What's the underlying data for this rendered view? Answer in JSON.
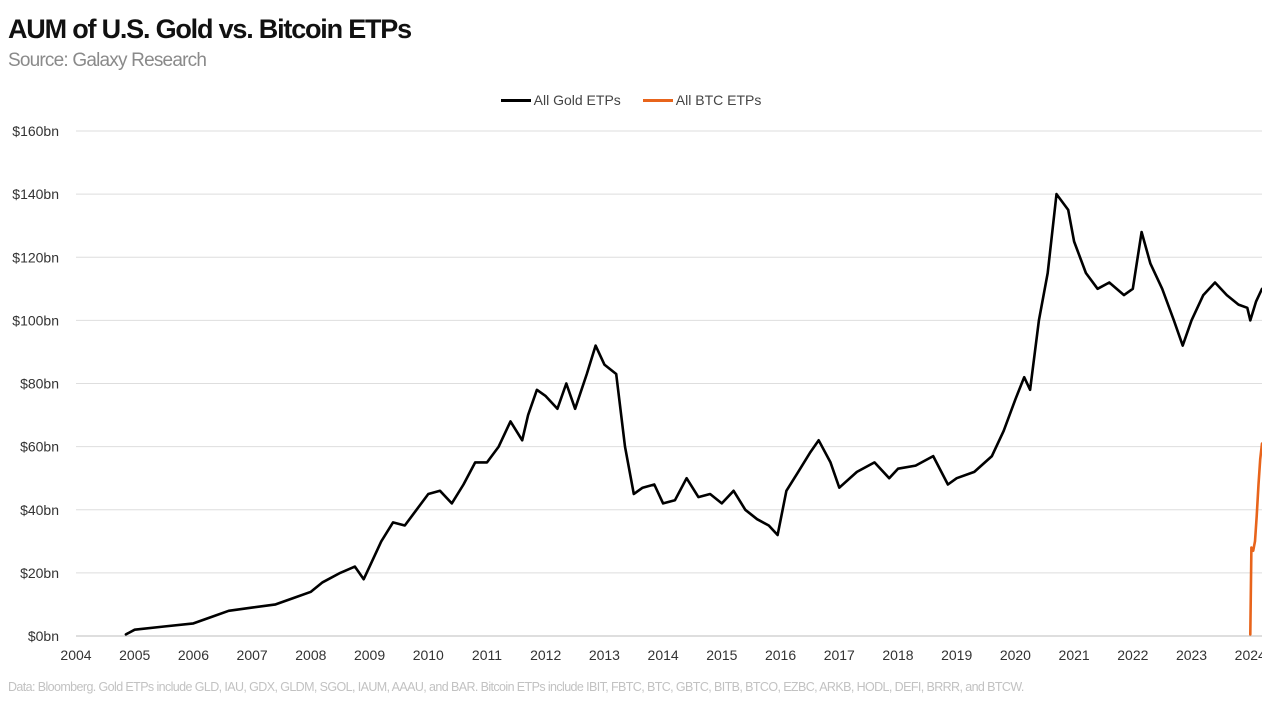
{
  "chart_data": {
    "type": "line",
    "title": "AUM of U.S. Gold vs. Bitcoin ETPs",
    "subtitle": "Source: Galaxy Research",
    "xlabel": "",
    "ylabel": "",
    "xlim": [
      2004,
      2024.2
    ],
    "ylim": [
      0,
      160
    ],
    "grid": true,
    "legend_position": "top-center",
    "x_ticks": [
      "2004",
      "2005",
      "2006",
      "2007",
      "2008",
      "2009",
      "2010",
      "2011",
      "2012",
      "2013",
      "2014",
      "2015",
      "2016",
      "2017",
      "2018",
      "2019",
      "2020",
      "2021",
      "2022",
      "2023",
      "2024"
    ],
    "y_ticks": [
      {
        "value": 0,
        "label": "$0bn"
      },
      {
        "value": 20,
        "label": "$20bn"
      },
      {
        "value": 40,
        "label": "$40bn"
      },
      {
        "value": 60,
        "label": "$60bn"
      },
      {
        "value": 80,
        "label": "$80bn"
      },
      {
        "value": 100,
        "label": "$100bn"
      },
      {
        "value": 120,
        "label": "$120bn"
      },
      {
        "value": 140,
        "label": "$140bn"
      },
      {
        "value": 160,
        "label": "$160bn"
      }
    ],
    "series": [
      {
        "name": "All Gold ETPs",
        "color": "#000000",
        "x": [
          2004.85,
          2005.0,
          2005.5,
          2006.0,
          2006.3,
          2006.6,
          2007.0,
          2007.4,
          2007.7,
          2008.0,
          2008.2,
          2008.5,
          2008.75,
          2008.9,
          2009.0,
          2009.2,
          2009.4,
          2009.6,
          2009.8,
          2010.0,
          2010.2,
          2010.4,
          2010.6,
          2010.8,
          2011.0,
          2011.2,
          2011.4,
          2011.6,
          2011.7,
          2011.85,
          2012.0,
          2012.2,
          2012.35,
          2012.5,
          2012.7,
          2012.85,
          2013.0,
          2013.2,
          2013.35,
          2013.5,
          2013.65,
          2013.85,
          2014.0,
          2014.2,
          2014.4,
          2014.6,
          2014.8,
          2015.0,
          2015.2,
          2015.4,
          2015.6,
          2015.8,
          2015.95,
          2016.1,
          2016.3,
          2016.5,
          2016.65,
          2016.85,
          2017.0,
          2017.3,
          2017.6,
          2017.85,
          2018.0,
          2018.3,
          2018.6,
          2018.85,
          2019.0,
          2019.3,
          2019.6,
          2019.8,
          2020.0,
          2020.15,
          2020.25,
          2020.4,
          2020.55,
          2020.7,
          2020.9,
          2021.0,
          2021.2,
          2021.4,
          2021.6,
          2021.85,
          2022.0,
          2022.15,
          2022.3,
          2022.5,
          2022.7,
          2022.85,
          2023.0,
          2023.2,
          2023.4,
          2023.6,
          2023.8,
          2023.95,
          2024.0,
          2024.1,
          2024.2
        ],
        "values": [
          0.5,
          2,
          3,
          4,
          6,
          8,
          9,
          10,
          12,
          14,
          17,
          20,
          22,
          18,
          22,
          30,
          36,
          35,
          40,
          45,
          46,
          42,
          48,
          55,
          55,
          60,
          68,
          62,
          70,
          78,
          76,
          72,
          80,
          72,
          83,
          92,
          86,
          83,
          60,
          45,
          47,
          48,
          42,
          43,
          50,
          44,
          45,
          42,
          46,
          40,
          37,
          35,
          32,
          46,
          52,
          58,
          62,
          55,
          47,
          52,
          55,
          50,
          53,
          54,
          57,
          48,
          50,
          52,
          57,
          65,
          75,
          82,
          78,
          100,
          115,
          140,
          135,
          125,
          115,
          110,
          112,
          108,
          110,
          128,
          118,
          110,
          100,
          92,
          100,
          108,
          112,
          108,
          105,
          104,
          100,
          106,
          110
        ]
      },
      {
        "name": "All BTC ETPs",
        "color": "#e8641b",
        "x": [
          2024.0,
          2024.02,
          2024.05,
          2024.08,
          2024.11,
          2024.14,
          2024.17,
          2024.2
        ],
        "values": [
          0.5,
          28,
          27,
          30,
          38,
          48,
          56,
          61
        ]
      }
    ],
    "footnote": "Data: Bloomberg. Gold ETPs include GLD, IAU, GDX, GLDM, SGOL, IAUM, AAAU, and BAR. Bitcoin ETPs include IBIT, FBTC, BTC, GBTC, BITB, BTCO, EZBC, ARKB, HODL, DEFI, BRRR, and BTCW."
  }
}
